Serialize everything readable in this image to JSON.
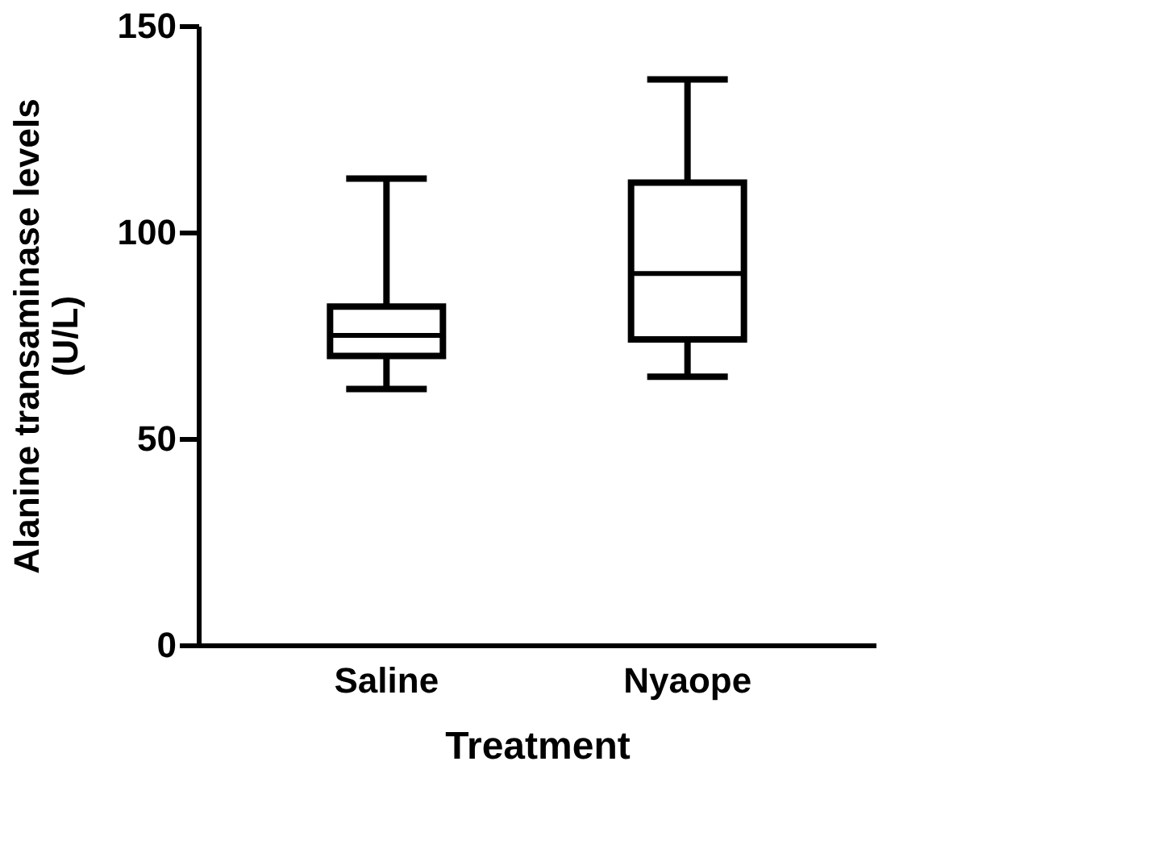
{
  "chart_data": {
    "type": "box",
    "xlabel": "Treatment",
    "ylabel": "Alanine transaminase levels\n(U/L)",
    "categories": [
      "Saline",
      "Nyaope"
    ],
    "boxes": [
      {
        "low": 62,
        "q1": 70,
        "median": 75,
        "q3": 82,
        "high": 113
      },
      {
        "low": 65,
        "q1": 74,
        "median": 90,
        "q3": 112,
        "high": 137
      }
    ],
    "ylim": [
      0,
      150
    ],
    "yticks": [
      0,
      50,
      100,
      150
    ],
    "grid": false
  }
}
